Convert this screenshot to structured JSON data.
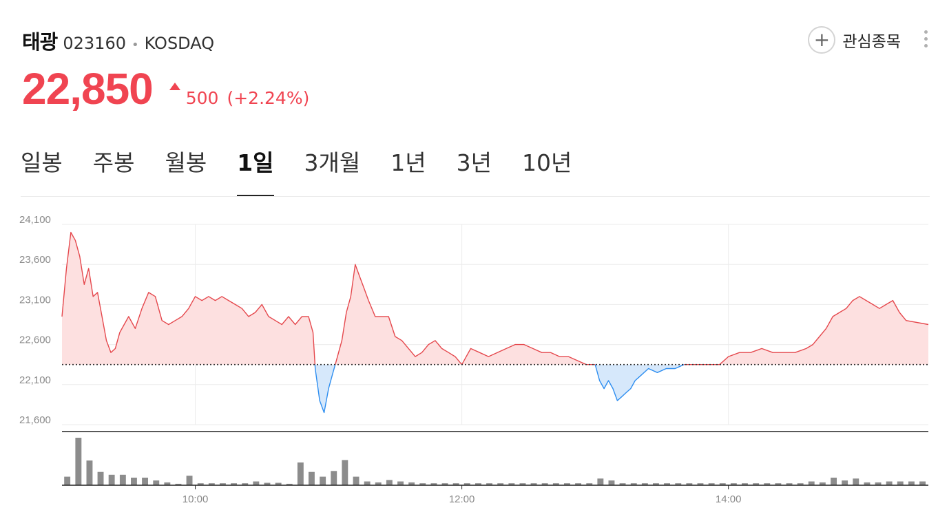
{
  "stock": {
    "name": "태광",
    "code": "023160",
    "separator": "•",
    "market": "KOSDAQ",
    "price": "22,850",
    "change": "500",
    "change_rate": "(+2.24%)",
    "direction": "up"
  },
  "watchlist": {
    "label": "관심종목",
    "icon": "plus-icon"
  },
  "tabs": [
    {
      "label": "일봉",
      "active": false
    },
    {
      "label": "주봉",
      "active": false
    },
    {
      "label": "월봉",
      "active": false
    },
    {
      "label": "1일",
      "active": true
    },
    {
      "label": "3개월",
      "active": false
    },
    {
      "label": "1년",
      "active": false
    },
    {
      "label": "3년",
      "active": false
    },
    {
      "label": "10년",
      "active": false
    }
  ],
  "colors": {
    "up": "#f04451",
    "up_line": "#e5484d",
    "up_fill": "#fde0e0",
    "down_line": "#2e8ef0",
    "down_fill": "#d6e8fb",
    "volume": "#8c8c8c"
  },
  "chart_data": {
    "type": "area",
    "title": "",
    "xlabel": "",
    "ylabel": "",
    "x_range": [
      "09:00",
      "15:30"
    ],
    "x_ticks": [
      "10:00",
      "12:00",
      "14:00"
    ],
    "y_ticks": [
      "24,100",
      "23,600",
      "23,100",
      "22,600",
      "22,100",
      "21,600"
    ],
    "ylim": [
      21600,
      24100
    ],
    "baseline": 22350,
    "grid": true,
    "price": {
      "times": [
        "09:00",
        "09:02",
        "09:04",
        "09:06",
        "09:08",
        "09:10",
        "09:12",
        "09:14",
        "09:16",
        "09:18",
        "09:20",
        "09:22",
        "09:24",
        "09:26",
        "09:28",
        "09:30",
        "09:33",
        "09:36",
        "09:39",
        "09:42",
        "09:45",
        "09:48",
        "09:51",
        "09:54",
        "09:57",
        "10:00",
        "10:03",
        "10:06",
        "10:09",
        "10:12",
        "10:15",
        "10:18",
        "10:21",
        "10:24",
        "10:27",
        "10:30",
        "10:33",
        "10:36",
        "10:39",
        "10:42",
        "10:45",
        "10:48",
        "10:51",
        "10:53",
        "10:54",
        "10:56",
        "10:58",
        "11:00",
        "11:02",
        "11:04",
        "11:06",
        "11:08",
        "11:10",
        "11:12",
        "11:14",
        "11:16",
        "11:18",
        "11:21",
        "11:24",
        "11:27",
        "11:30",
        "11:33",
        "11:36",
        "11:39",
        "11:42",
        "11:45",
        "11:48",
        "11:51",
        "11:54",
        "11:57",
        "12:00",
        "12:04",
        "12:08",
        "12:12",
        "12:16",
        "12:20",
        "12:24",
        "12:28",
        "12:32",
        "12:36",
        "12:40",
        "12:44",
        "12:48",
        "12:52",
        "12:56",
        "13:00",
        "13:02",
        "13:04",
        "13:06",
        "13:08",
        "13:10",
        "13:12",
        "13:14",
        "13:16",
        "13:18",
        "13:20",
        "13:24",
        "13:28",
        "13:32",
        "13:36",
        "13:40",
        "13:44",
        "13:48",
        "13:52",
        "13:56",
        "14:00",
        "14:05",
        "14:10",
        "14:15",
        "14:20",
        "14:25",
        "14:30",
        "14:35",
        "14:38",
        "14:41",
        "14:44",
        "14:47",
        "14:50",
        "14:53",
        "14:56",
        "14:59",
        "15:02",
        "15:05",
        "15:08",
        "15:11",
        "15:14",
        "15:17",
        "15:20",
        "15:30"
      ],
      "values": [
        22950,
        23550,
        24000,
        23900,
        23700,
        23350,
        23550,
        23200,
        23250,
        22950,
        22650,
        22500,
        22550,
        22750,
        22850,
        22950,
        22800,
        23050,
        23250,
        23200,
        22900,
        22850,
        22900,
        22950,
        23050,
        23200,
        23150,
        23200,
        23150,
        23200,
        23150,
        23100,
        23050,
        22950,
        23000,
        23100,
        22950,
        22900,
        22850,
        22950,
        22850,
        22950,
        22950,
        22750,
        22300,
        21900,
        21750,
        22050,
        22250,
        22450,
        22650,
        23000,
        23200,
        23600,
        23450,
        23300,
        23150,
        22950,
        22950,
        22950,
        22700,
        22650,
        22550,
        22450,
        22500,
        22600,
        22650,
        22550,
        22500,
        22450,
        22350,
        22550,
        22500,
        22450,
        22500,
        22550,
        22600,
        22600,
        22550,
        22500,
        22500,
        22450,
        22450,
        22400,
        22350,
        22350,
        22150,
        22050,
        22150,
        22050,
        21900,
        21950,
        22000,
        22050,
        22150,
        22200,
        22300,
        22250,
        22300,
        22300,
        22350,
        22350,
        22350,
        22350,
        22350,
        22450,
        22500,
        22500,
        22550,
        22500,
        22500,
        22500,
        22550,
        22600,
        22700,
        22800,
        22950,
        23000,
        23050,
        23150,
        23200,
        23150,
        23100,
        23050,
        23100,
        23150,
        23000,
        22900,
        22850
      ]
    },
    "volume": {
      "times": [
        "09:00",
        "09:05",
        "09:10",
        "09:15",
        "09:20",
        "09:25",
        "09:30",
        "09:35",
        "09:40",
        "09:45",
        "09:50",
        "09:55",
        "10:00",
        "10:05",
        "10:10",
        "10:15",
        "10:20",
        "10:25",
        "10:30",
        "10:35",
        "10:40",
        "10:45",
        "10:50",
        "10:55",
        "11:00",
        "11:05",
        "11:10",
        "11:15",
        "11:20",
        "11:25",
        "11:30",
        "11:35",
        "11:40",
        "11:45",
        "11:50",
        "11:55",
        "12:00",
        "12:05",
        "12:10",
        "12:15",
        "12:20",
        "12:25",
        "12:30",
        "12:35",
        "12:40",
        "12:45",
        "12:50",
        "12:55",
        "13:00",
        "13:05",
        "13:10",
        "13:15",
        "13:20",
        "13:25",
        "13:30",
        "13:35",
        "13:40",
        "13:45",
        "13:50",
        "13:55",
        "14:00",
        "14:05",
        "14:10",
        "14:15",
        "14:20",
        "14:25",
        "14:30",
        "14:35",
        "14:40",
        "14:45",
        "14:50",
        "14:55",
        "15:00",
        "15:05",
        "15:10",
        "15:15",
        "15:20",
        "15:25"
      ],
      "values": [
        18,
        100,
        52,
        28,
        22,
        22,
        16,
        16,
        10,
        6,
        3,
        20,
        4,
        4,
        4,
        4,
        4,
        8,
        5,
        5,
        3,
        48,
        28,
        18,
        30,
        53,
        18,
        8,
        6,
        11,
        8,
        6,
        4,
        4,
        4,
        4,
        4,
        4,
        4,
        4,
        4,
        4,
        4,
        4,
        4,
        4,
        4,
        4,
        14,
        10,
        4,
        4,
        4,
        4,
        4,
        4,
        4,
        4,
        4,
        4,
        4,
        4,
        4,
        4,
        4,
        4,
        4,
        8,
        6,
        16,
        10,
        14,
        6,
        6,
        8,
        8,
        8,
        8
      ]
    }
  }
}
